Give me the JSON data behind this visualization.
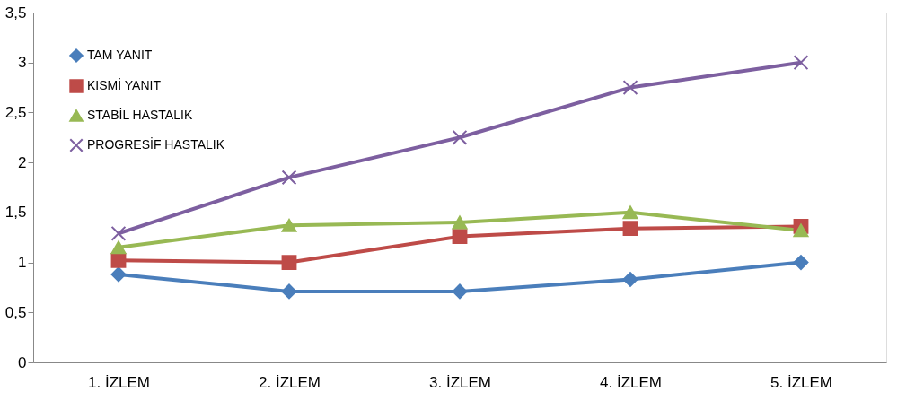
{
  "chart_data": {
    "type": "line",
    "categories": [
      "1. İZLEM",
      "2. İZLEM",
      "3. İZLEM",
      "4. İZLEM",
      "5. İZLEM"
    ],
    "series": [
      {
        "name": "TAM YANIT",
        "color": "#4a7ebb",
        "marker": "diamond",
        "values": [
          0.88,
          0.71,
          0.71,
          0.83,
          1.0
        ]
      },
      {
        "name": "KISMİ YANIT",
        "color": "#be4b48",
        "marker": "square",
        "values": [
          1.02,
          1.0,
          1.26,
          1.34,
          1.36
        ]
      },
      {
        "name": "STABİL HASTALIK",
        "color": "#98b954",
        "marker": "triangle",
        "values": [
          1.15,
          1.37,
          1.4,
          1.5,
          1.32
        ]
      },
      {
        "name": "PROGRESİF HASTALIK",
        "color": "#7d5fa0",
        "marker": "cross",
        "values": [
          1.29,
          1.85,
          2.25,
          2.75,
          3.0
        ]
      }
    ],
    "ylim": [
      0,
      3.5
    ],
    "yticks": [
      0,
      {
        "value": 0.5,
        "label": "0,5"
      },
      1,
      {
        "value": 1.5,
        "label": "1,5"
      },
      2,
      {
        "value": 2.5,
        "label": "2,5"
      },
      3,
      {
        "value": 3.5,
        "label": "3,5"
      }
    ],
    "grid": false,
    "legend": "top left",
    "line_style": "solid"
  }
}
